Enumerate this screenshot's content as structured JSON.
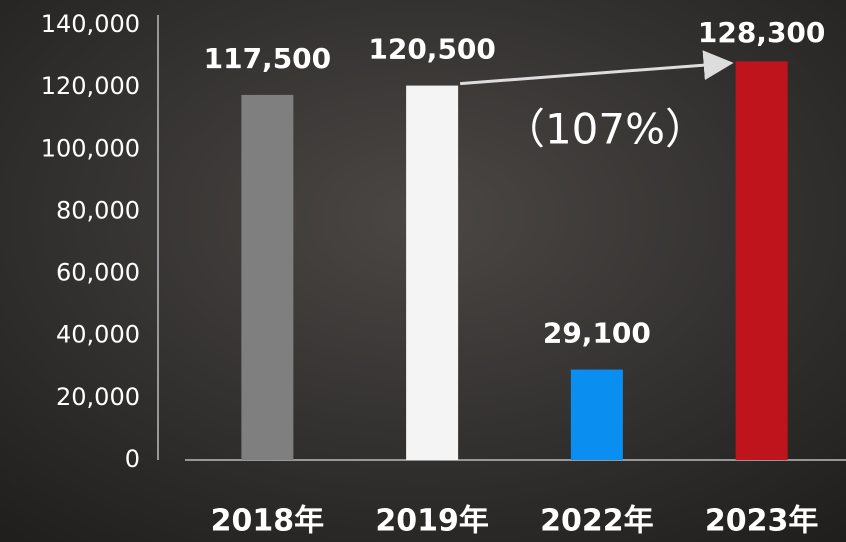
{
  "chart_data": {
    "type": "bar",
    "categories": [
      "2018年",
      "2019年",
      "2022年",
      "2023年"
    ],
    "values": [
      117500,
      120500,
      29100,
      128300
    ],
    "value_labels": [
      "117,500",
      "120,500",
      "29,100",
      "128,300"
    ],
    "colors": [
      "#7f7f7f",
      "#f4f4f4",
      "#0a8ff0",
      "#c0141c"
    ],
    "ylim": [
      0,
      140000
    ],
    "yticks": [
      0,
      {
        "value": 20000,
        "label": "20,000"
      },
      {
        "value": 40000,
        "label": "40,000"
      },
      {
        "value": 60000,
        "label": "60,000"
      },
      {
        "value": 80000,
        "label": "80,000"
      },
      {
        "value": 100000,
        "label": "100,000"
      },
      {
        "value": 120000,
        "label": "120,000"
      },
      {
        "value": 140000,
        "label": "140,000"
      }
    ],
    "annotation": "（107%）"
  }
}
